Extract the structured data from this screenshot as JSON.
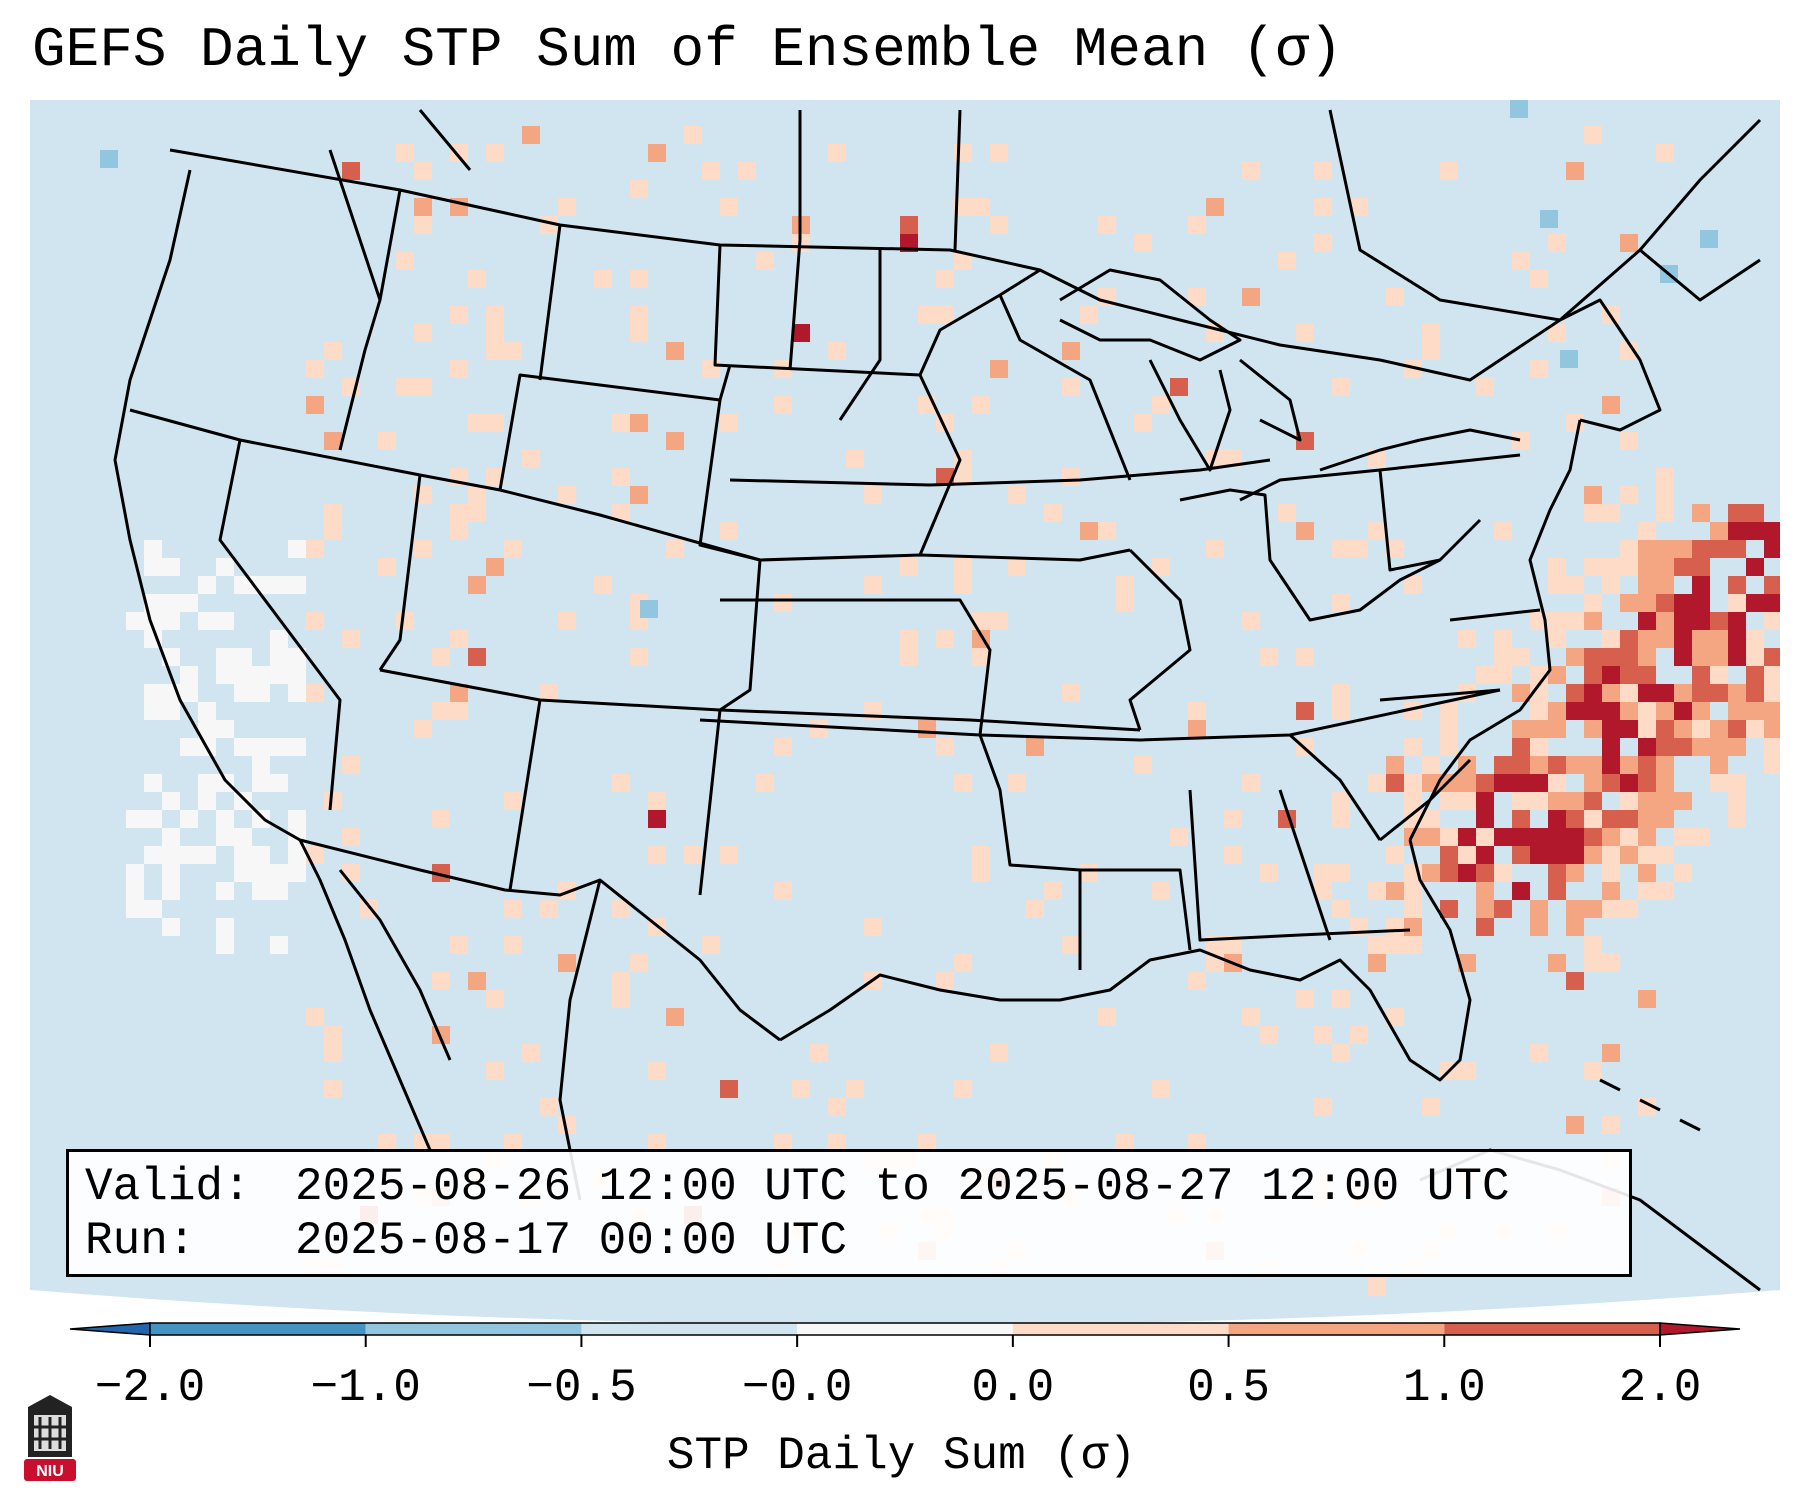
{
  "title": "GEFS Daily STP Sum of Ensemble Mean (σ)",
  "info": {
    "valid_label": "Valid:",
    "valid_value": "2025-08-26 12:00 UTC to 2025-08-27 12:00 UTC",
    "run_label": "Run:",
    "run_value": "2025-08-17 00:00 UTC"
  },
  "colorbar": {
    "label": "STP Daily Sum (σ)",
    "ticks": [
      "−2.0",
      "−1.0",
      "−0.5",
      "−0.0",
      "0.0",
      "0.5",
      "1.0",
      "2.0"
    ],
    "bins": [
      {
        "range": "< -2.0",
        "color": "#2166ac"
      },
      {
        "range": "-2.0 to -1.0",
        "color": "#4393c3"
      },
      {
        "range": "-1.0 to -0.5",
        "color": "#92c5de"
      },
      {
        "range": "-0.5 to -0.0",
        "color": "#d1e5f0"
      },
      {
        "range": "-0.0 to 0.0",
        "color": "#f7f7f7"
      },
      {
        "range": "0.0 to 0.5",
        "color": "#fddbc7"
      },
      {
        "range": "0.5 to 1.0",
        "color": "#f4a582"
      },
      {
        "range": "1.0 to 2.0",
        "color": "#d6604d"
      },
      {
        "range": "> 2.0",
        "color": "#b2182b"
      }
    ]
  },
  "map": {
    "background_color": "#d1e5f0",
    "high_value_region": "Atlantic offshore of the Carolinas to Mid-Atlantic (values > 2.0)",
    "low_value_region": "Pacific off California/Baja (near 0)"
  },
  "logo": {
    "text": "NIU",
    "color": "#c8102e"
  }
}
